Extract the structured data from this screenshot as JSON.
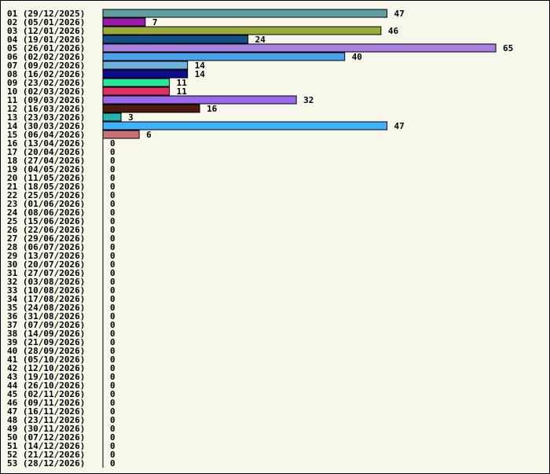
{
  "chart_data": {
    "type": "bar",
    "orientation": "horizontal",
    "categories": [
      "01 (29/12/2025)",
      "02 (05/01/2026)",
      "03 (12/01/2026)",
      "04 (19/01/2026)",
      "05 (26/01/2026)",
      "06 (02/02/2026)",
      "07 (09/02/2026)",
      "08 (16/02/2026)",
      "09 (23/02/2026)",
      "10 (02/03/2026)",
      "11 (09/03/2026)",
      "12 (16/03/2026)",
      "13 (23/03/2026)",
      "14 (30/03/2026)",
      "15 (06/04/2026)",
      "16 (13/04/2026)",
      "17 (20/04/2026)",
      "18 (27/04/2026)",
      "19 (04/05/2026)",
      "20 (11/05/2026)",
      "21 (18/05/2026)",
      "22 (25/05/2026)",
      "23 (01/06/2026)",
      "24 (08/06/2026)",
      "25 (15/06/2026)",
      "26 (22/06/2026)",
      "27 (29/06/2026)",
      "28 (06/07/2026)",
      "29 (13/07/2026)",
      "30 (20/07/2026)",
      "31 (27/07/2026)",
      "32 (03/08/2026)",
      "33 (10/08/2026)",
      "34 (17/08/2026)",
      "35 (24/08/2026)",
      "36 (31/08/2026)",
      "37 (07/09/2026)",
      "38 (14/09/2026)",
      "39 (21/09/2026)",
      "40 (28/09/2026)",
      "41 (05/10/2026)",
      "42 (12/10/2026)",
      "43 (19/10/2026)",
      "44 (26/10/2026)",
      "45 (02/11/2026)",
      "46 (09/11/2026)",
      "47 (16/11/2026)",
      "48 (23/11/2026)",
      "49 (30/11/2026)",
      "50 (07/12/2026)",
      "51 (14/12/2026)",
      "52 (21/12/2026)",
      "53 (28/12/2026)"
    ],
    "values": [
      47,
      7,
      46,
      24,
      65,
      40,
      14,
      14,
      11,
      11,
      32,
      16,
      3,
      47,
      6,
      0,
      0,
      0,
      0,
      0,
      0,
      0,
      0,
      0,
      0,
      0,
      0,
      0,
      0,
      0,
      0,
      0,
      0,
      0,
      0,
      0,
      0,
      0,
      0,
      0,
      0,
      0,
      0,
      0,
      0,
      0,
      0,
      0,
      0,
      0,
      0,
      0,
      0
    ],
    "colors": [
      "#5f9ea0",
      "#9a1aae",
      "#9aaa3b",
      "#12508a",
      "#a681dd",
      "#4aa3ea",
      "#6cb2da",
      "#0c0c90",
      "#26e69a",
      "#e03063",
      "#9968ec",
      "#4b1c0c",
      "#23b4ae",
      "#3fb3ff",
      "#c97078"
    ],
    "xlim": [
      0,
      65
    ],
    "title": "",
    "xlabel": "",
    "ylabel": "",
    "grid": false,
    "legend": "none"
  }
}
